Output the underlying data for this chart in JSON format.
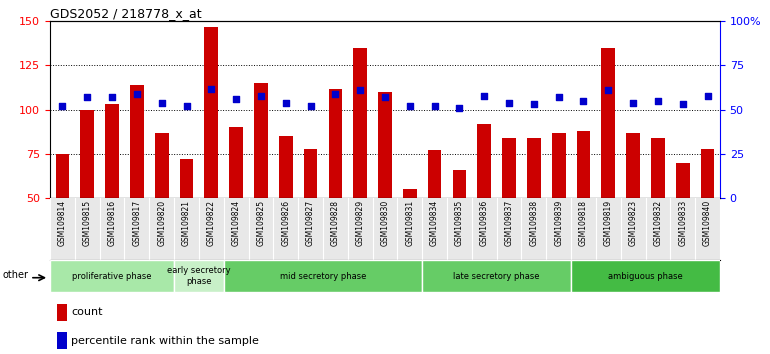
{
  "title": "GDS2052 / 218778_x_at",
  "samples": [
    "GSM109814",
    "GSM109815",
    "GSM109816",
    "GSM109817",
    "GSM109820",
    "GSM109821",
    "GSM109822",
    "GSM109824",
    "GSM109825",
    "GSM109826",
    "GSM109827",
    "GSM109828",
    "GSM109829",
    "GSM109830",
    "GSM109831",
    "GSM109834",
    "GSM109835",
    "GSM109836",
    "GSM109837",
    "GSM109838",
    "GSM109839",
    "GSM109818",
    "GSM109819",
    "GSM109823",
    "GSM109832",
    "GSM109833",
    "GSM109840"
  ],
  "counts": [
    75,
    100,
    103,
    114,
    87,
    72,
    147,
    90,
    115,
    85,
    78,
    112,
    135,
    110,
    55,
    77,
    66,
    92,
    84,
    84,
    87,
    88,
    135,
    87,
    84,
    70,
    78
  ],
  "percentiles": [
    52,
    57,
    57,
    59,
    54,
    52,
    62,
    56,
    58,
    54,
    52,
    59,
    61,
    57,
    52,
    52,
    51,
    58,
    54,
    53,
    57,
    55,
    61,
    54,
    55,
    53,
    58
  ],
  "bar_color": "#cc0000",
  "dot_color": "#0000cc",
  "phases": [
    {
      "label": "proliferative phase",
      "start": 0,
      "end": 5
    },
    {
      "label": "early secretory\nphase",
      "start": 5,
      "end": 7
    },
    {
      "label": "mid secretory phase",
      "start": 7,
      "end": 15
    },
    {
      "label": "late secretory phase",
      "start": 15,
      "end": 21
    },
    {
      "label": "ambiguous phase",
      "start": 21,
      "end": 27
    }
  ],
  "phase_colors": [
    "#a8e8a8",
    "#c8f0c8",
    "#66cc66",
    "#66cc66",
    "#44bb44"
  ],
  "ylim_left": [
    50,
    150
  ],
  "ylim_right": [
    0,
    100
  ],
  "yticks_left": [
    50,
    75,
    100,
    125,
    150
  ],
  "yticks_right": [
    0,
    25,
    50,
    75,
    100
  ],
  "ytick_labels_right": [
    "0",
    "25",
    "50",
    "75",
    "100%"
  ],
  "bg_color": "#e8e8e8",
  "fig_bg": "#ffffff"
}
